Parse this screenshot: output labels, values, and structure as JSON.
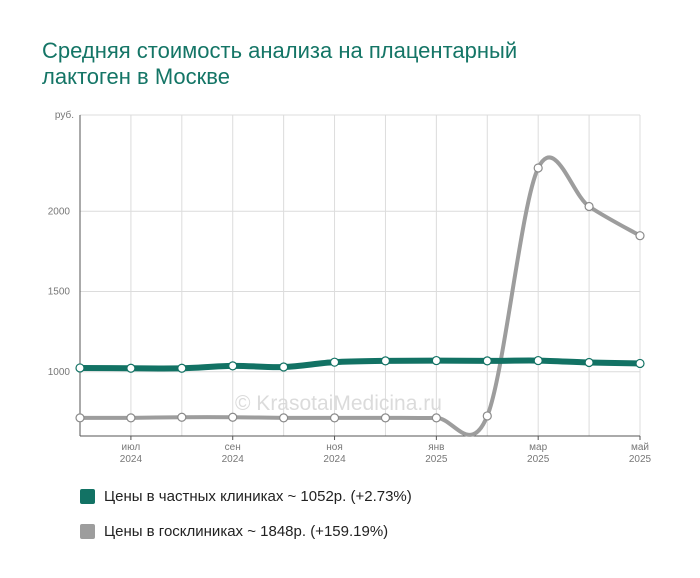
{
  "title_lines": [
    "Средняя стоимость анализа на плацентарный",
    "лактоген в Москве"
  ],
  "watermark": "© KrasotaiMedicina.ru",
  "chart_data": {
    "type": "line",
    "title": "Средняя стоимость анализа на плацентарный лактоген в Москве",
    "y_unit": "руб.",
    "ylim": [
      600,
      2600
    ],
    "y_ticks": [
      1000,
      1500,
      2000
    ],
    "grid": true,
    "legend_position": "bottom-left",
    "x": [
      "2024-06",
      "2024-07",
      "2024-08",
      "2024-09",
      "2024-10",
      "2024-11",
      "2024-12",
      "2025-01",
      "2025-02",
      "2025-03",
      "2025-04",
      "2025-05"
    ],
    "x_tick_labels": [
      {
        "month": "июл",
        "year": "2024",
        "index": 1
      },
      {
        "month": "сен",
        "year": "2024",
        "index": 3
      },
      {
        "month": "ноя",
        "year": "2024",
        "index": 5
      },
      {
        "month": "янв",
        "year": "2025",
        "index": 7
      },
      {
        "month": "мар",
        "year": "2025",
        "index": 9
      },
      {
        "month": "май",
        "year": "2025",
        "index": 11
      }
    ],
    "series": [
      {
        "name": "Цены в частных клиниках ~ 1052р. (+2.73%)",
        "color": "#127264",
        "values": [
          1024,
          1022,
          1022,
          1037,
          1030,
          1060,
          1068,
          1070,
          1068,
          1070,
          1058,
          1052
        ]
      },
      {
        "name": "Цены в госклиниках ~ 1848р. (+159.19%)",
        "color": "#9d9d9d",
        "values": [
          713,
          713,
          717,
          717,
          713,
          713,
          713,
          713,
          725,
          2270,
          2030,
          1848
        ]
      }
    ]
  }
}
